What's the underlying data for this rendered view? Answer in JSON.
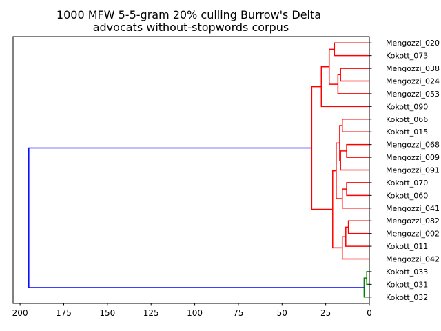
{
  "chart_data": {
    "type": "dendrogram",
    "title": "1000 MFW 5-5-gram 20% culling Burrow's Delta",
    "subtitle": "advocats without-stopwords corpus",
    "orientation": "left",
    "xlim": [
      204,
      0
    ],
    "xticks": [
      "200",
      "175",
      "150",
      "125",
      "100",
      "75",
      "50",
      "25",
      "0"
    ],
    "xtick_values": [
      200,
      175,
      150,
      125,
      100,
      75,
      50,
      25,
      0
    ],
    "leaves": [
      "Mengozzi_020",
      "Kokott_073",
      "Mengozzi_038",
      "Mengozzi_024",
      "Mengozzi_053",
      "Kokott_090",
      "Kokott_066",
      "Kokott_015",
      "Mengozzi_068",
      "Mengozzi_009",
      "Mengozzi_091",
      "Kokott_070",
      "Kokott_060",
      "Mengozzi_041",
      "Mengozzi_082",
      "Mengozzi_002",
      "Kokott_011",
      "Mengozzi_042",
      "Kokott_033",
      "Kokott_031",
      "Kokott_032"
    ],
    "colors": {
      "red_cluster": "#ff0000",
      "green_cluster": "#008000",
      "root": "#0000ff"
    },
    "merges": [
      {
        "a": 0,
        "b": 1,
        "height": 20.0,
        "color": "red_cluster"
      },
      {
        "a": 2,
        "b": 3,
        "height": 16.5,
        "color": "red_cluster"
      },
      {
        "a": 22,
        "b": 4,
        "height": 18.0,
        "color": "red_cluster"
      },
      {
        "a": 21,
        "b": 23,
        "height": 23.0,
        "color": "red_cluster"
      },
      {
        "a": 24,
        "b": 5,
        "height": 27.5,
        "color": "red_cluster"
      },
      {
        "a": 6,
        "b": 7,
        "height": 15.5,
        "color": "red_cluster"
      },
      {
        "a": 8,
        "b": 9,
        "height": 13.0,
        "color": "red_cluster"
      },
      {
        "a": 27,
        "b": 10,
        "height": 16.5,
        "color": "red_cluster"
      },
      {
        "a": 26,
        "b": 28,
        "height": 17.0,
        "color": "red_cluster"
      },
      {
        "a": 11,
        "b": 12,
        "height": 13.0,
        "color": "red_cluster"
      },
      {
        "a": 30,
        "b": 13,
        "height": 15.5,
        "color": "red_cluster"
      },
      {
        "a": 29,
        "b": 31,
        "height": 19.0,
        "color": "red_cluster"
      },
      {
        "a": 14,
        "b": 15,
        "height": 12.0,
        "color": "red_cluster"
      },
      {
        "a": 33,
        "b": 16,
        "height": 13.5,
        "color": "red_cluster"
      },
      {
        "a": 34,
        "b": 17,
        "height": 15.5,
        "color": "red_cluster"
      },
      {
        "a": 32,
        "b": 35,
        "height": 21.0,
        "color": "red_cluster"
      },
      {
        "a": 25,
        "b": 36,
        "height": 33.0,
        "color": "red_cluster"
      },
      {
        "a": 18,
        "b": 19,
        "height": 1.5,
        "color": "green_cluster"
      },
      {
        "a": 38,
        "b": 20,
        "height": 3.0,
        "color": "green_cluster"
      },
      {
        "a": 37,
        "b": 39,
        "height": 195.0,
        "color": "root"
      }
    ]
  }
}
